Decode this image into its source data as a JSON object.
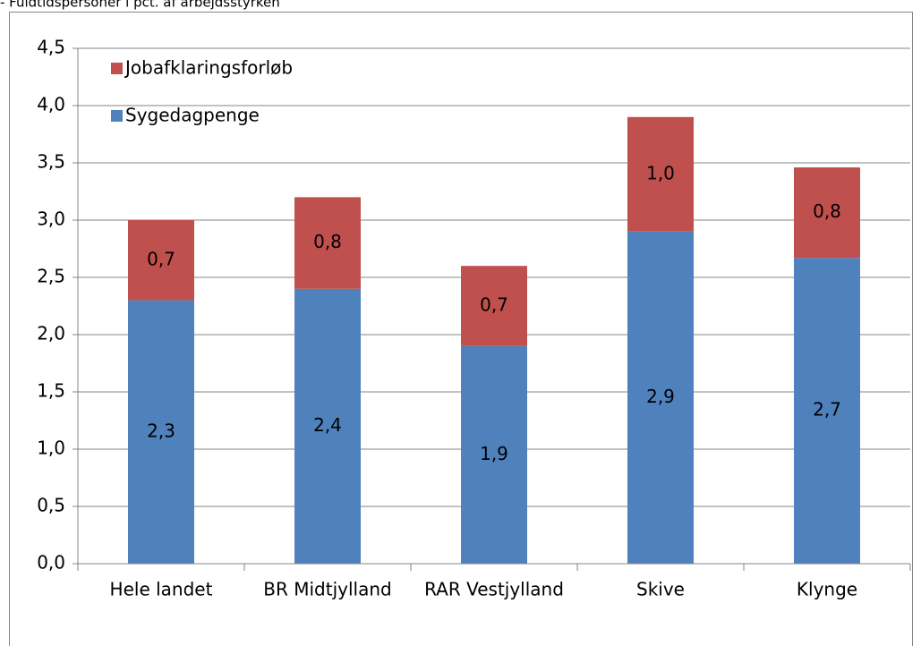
{
  "chart_data": {
    "type": "stacked_bar",
    "subtitle": "- Fuldtidspersoner i pct. af arbejdsstyrken",
    "categories": [
      "Hele landet",
      "BR Midtjylland",
      "RAR Vestjylland",
      "Skive",
      "Klynge"
    ],
    "series": [
      {
        "name": "Sygedagpenge",
        "color": "#4f81bd",
        "values": [
          2.3,
          2.4,
          1.9,
          2.9,
          2.67
        ],
        "value_labels": [
          "2,3",
          "2,4",
          "1,9",
          "2,9",
          "2,7"
        ]
      },
      {
        "name": "Jobafklaringsforløb",
        "color": "#c0504d",
        "values": [
          0.7,
          0.8,
          0.7,
          1.0,
          0.79
        ],
        "value_labels": [
          "0,7",
          "0,8",
          "0,7",
          "1,0",
          "0,8"
        ]
      }
    ],
    "ylim": [
      0,
      4.5
    ],
    "yticks": [
      {
        "value": 0,
        "label": "0,0"
      },
      {
        "value": 0.5,
        "label": "0,5"
      },
      {
        "value": 1,
        "label": "1,0"
      },
      {
        "value": 1.5,
        "label": "1,5"
      },
      {
        "value": 2,
        "label": "2,0"
      },
      {
        "value": 2.5,
        "label": "2,5"
      },
      {
        "value": 3,
        "label": "3,0"
      },
      {
        "value": 3.5,
        "label": "3,5"
      },
      {
        "value": 4,
        "label": "4,0"
      },
      {
        "value": 4.5,
        "label": "4,5"
      }
    ],
    "grid": true
  }
}
